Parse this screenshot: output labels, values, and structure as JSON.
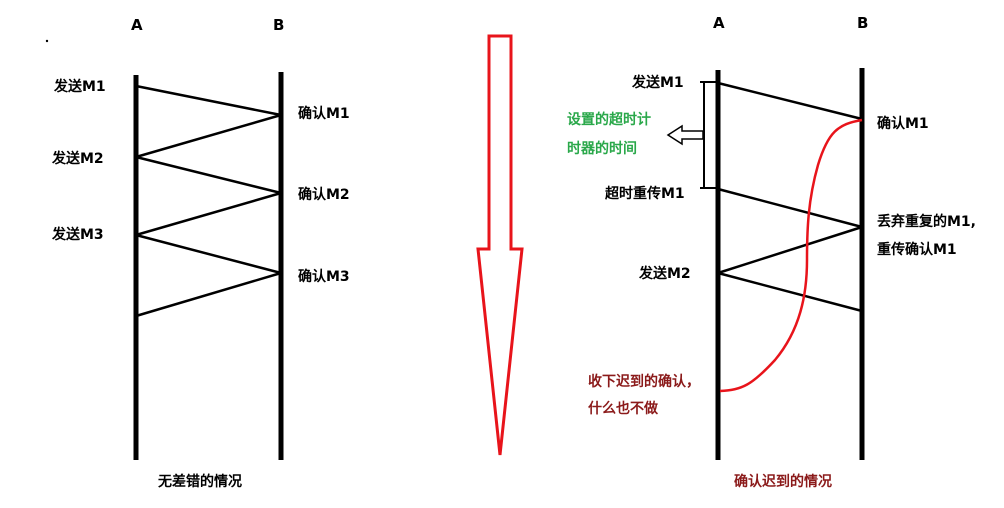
{
  "left": {
    "col_a": "A",
    "col_b": "B",
    "send_m1": "发送M1",
    "send_m2": "发送M2",
    "send_m3": "发送M3",
    "ack_m1": "确认M1",
    "ack_m2": "确认M2",
    "ack_m3": "确认M3",
    "caption": "无差错的情况"
  },
  "right": {
    "col_a": "A",
    "col_b": "B",
    "send_m1": "发送M1",
    "timer_line1": "设置的超时计",
    "timer_line2": "时器的时间",
    "retransmit_m1": "超时重传M1",
    "send_m2": "发送M2",
    "ack_m1": "确认M1",
    "discard_line1": "丢弃重复的M1,",
    "discard_line2": "重传确认M1",
    "late_ack_line1": "收下迟到的确认，",
    "late_ack_line2": "什么也不做",
    "caption": "确认迟到的情况"
  },
  "colors": {
    "arrow": "#e8141b",
    "late_ack_curve": "#e8141b",
    "timer_text": "#2aa84a",
    "late_ack_text": "#8b1a1a",
    "late_caption": "#8b1a1a"
  }
}
